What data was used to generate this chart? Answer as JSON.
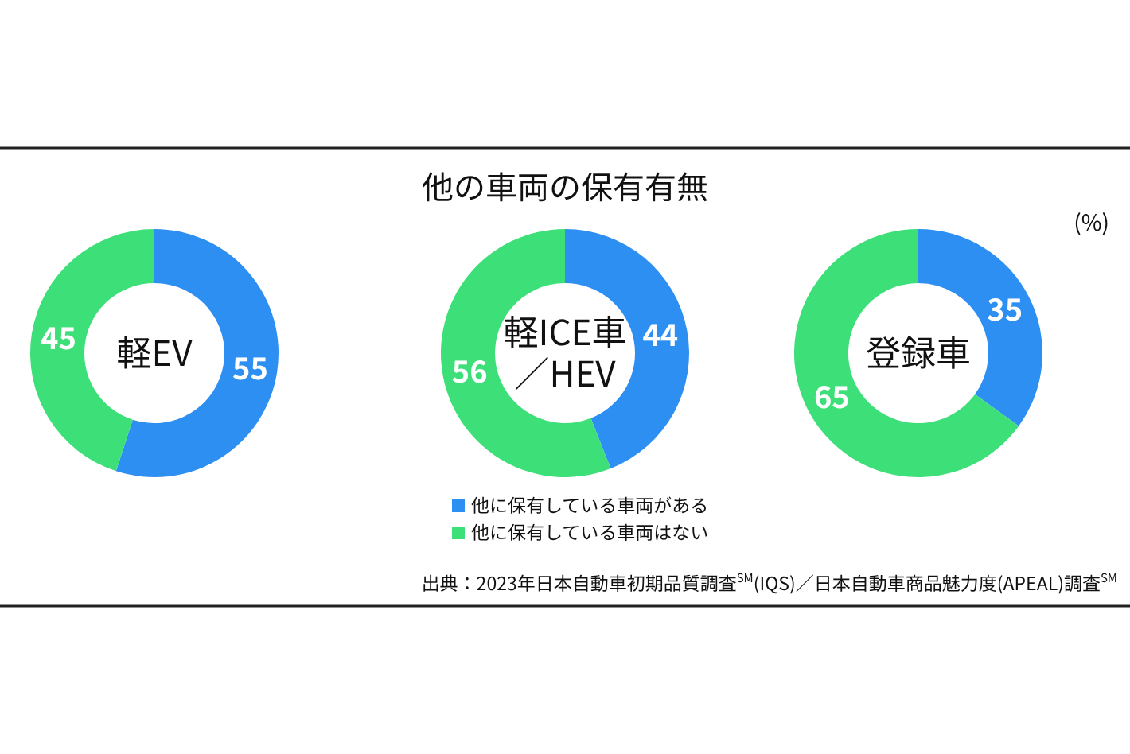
{
  "chart_data": [
    {
      "type": "other",
      "title": "他の車両の保有有無",
      "annotations": [
        "(%)",
        "出典：2023年日本自動車初期品質調査$^{SM}$(IQS)／日本自動車商品魅力度(APEAL)調査$^{SM}$"
      ]
    },
    {
      "type": "donut",
      "title": "軽EV",
      "values": [
        55,
        45
      ],
      "colors": [
        "#2e8ff2",
        "#3ddf78"
      ],
      "data_labels": true
    },
    {
      "type": "donut",
      "title": "軽ICE車／HEV",
      "categories": [
        "他に保有している車両がある",
        "他に保有している車両はない"
      ],
      "values": [
        44,
        56
      ],
      "colors": [
        "#2e8ff2",
        "#3ddf78"
      ],
      "data_labels": true,
      "legend": "bottom"
    },
    {
      "type": "donut",
      "title": "登録車",
      "values": [
        35,
        65
      ],
      "colors": [
        "#2e8ff2",
        "#3ddf78"
      ],
      "data_labels": true
    }
  ]
}
